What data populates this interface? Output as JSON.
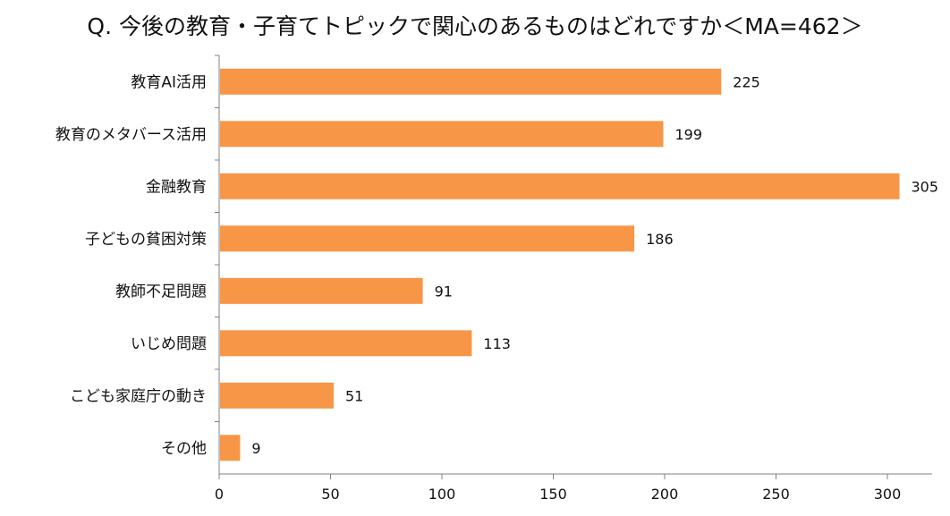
{
  "chart_data": {
    "type": "bar",
    "orientation": "horizontal",
    "title": "Q. 今後の教育・子育てトピックで関心のあるものはどれですか＜MA=462＞",
    "categories": [
      "教育AI活用",
      "教育のメタバース活用",
      "金融教育",
      "子どもの貧困対策",
      "教師不足問題",
      "いじめ問題",
      "こども家庭庁の動き",
      "その他"
    ],
    "values": [
      225,
      199,
      305,
      186,
      91,
      113,
      51,
      9
    ],
    "xlim": [
      0,
      320
    ],
    "xticks": [
      0,
      50,
      100,
      150,
      200,
      250,
      300
    ],
    "bar_color": "#F79646",
    "grid": false
  }
}
